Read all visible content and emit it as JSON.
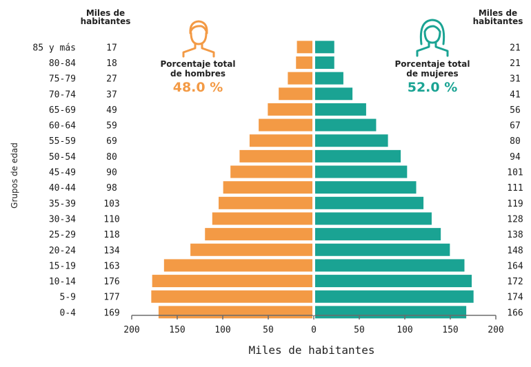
{
  "colors": {
    "male": "#f39a45",
    "female": "#1aa393",
    "axis": "#6b6b6b",
    "text": "#1a1a1a"
  },
  "headers": {
    "left_top": "Miles de",
    "left_bottom": "habitantes",
    "right_top": "Miles de",
    "right_bottom": "habitantes"
  },
  "summary": {
    "male_label_1": "Porcentaje total",
    "male_label_2": "de hombres",
    "male_pct": "48.0 %",
    "male_icon": "man-icon",
    "female_label_1": "Porcentaje total",
    "female_label_2": "de mujeres",
    "female_pct": "52.0 %",
    "female_icon": "woman-icon"
  },
  "chart_data": {
    "type": "bar",
    "orientation": "horizontal",
    "subtype": "population-pyramid",
    "ylabel": "Grupos de edad",
    "xlabel": "Miles de habitantes",
    "xlim": [
      -200,
      200
    ],
    "xticks": [
      -200,
      -150,
      -100,
      -50,
      0,
      50,
      100,
      150,
      200
    ],
    "xtick_labels": [
      "200",
      "150",
      "100",
      "50",
      "0",
      "50",
      "100",
      "150",
      "200"
    ],
    "categories": [
      "85 y más",
      "80-84",
      "75-79",
      "70-74",
      "65-69",
      "60-64",
      "55-59",
      "50-54",
      "45-49",
      "40-44",
      "35-39",
      "30-34",
      "25-29",
      "20-24",
      "15-19",
      "10-14",
      "5-9",
      "0-4"
    ],
    "series": [
      {
        "side": "left",
        "values": [
          17,
          18,
          27,
          37,
          49,
          59,
          69,
          80,
          90,
          98,
          103,
          110,
          118,
          134,
          163,
          176,
          177,
          169
        ]
      },
      {
        "side": "right",
        "values": [
          21,
          21,
          31,
          41,
          56,
          67,
          80,
          94,
          101,
          111,
          119,
          128,
          138,
          148,
          164,
          172,
          174,
          166
        ]
      }
    ]
  }
}
